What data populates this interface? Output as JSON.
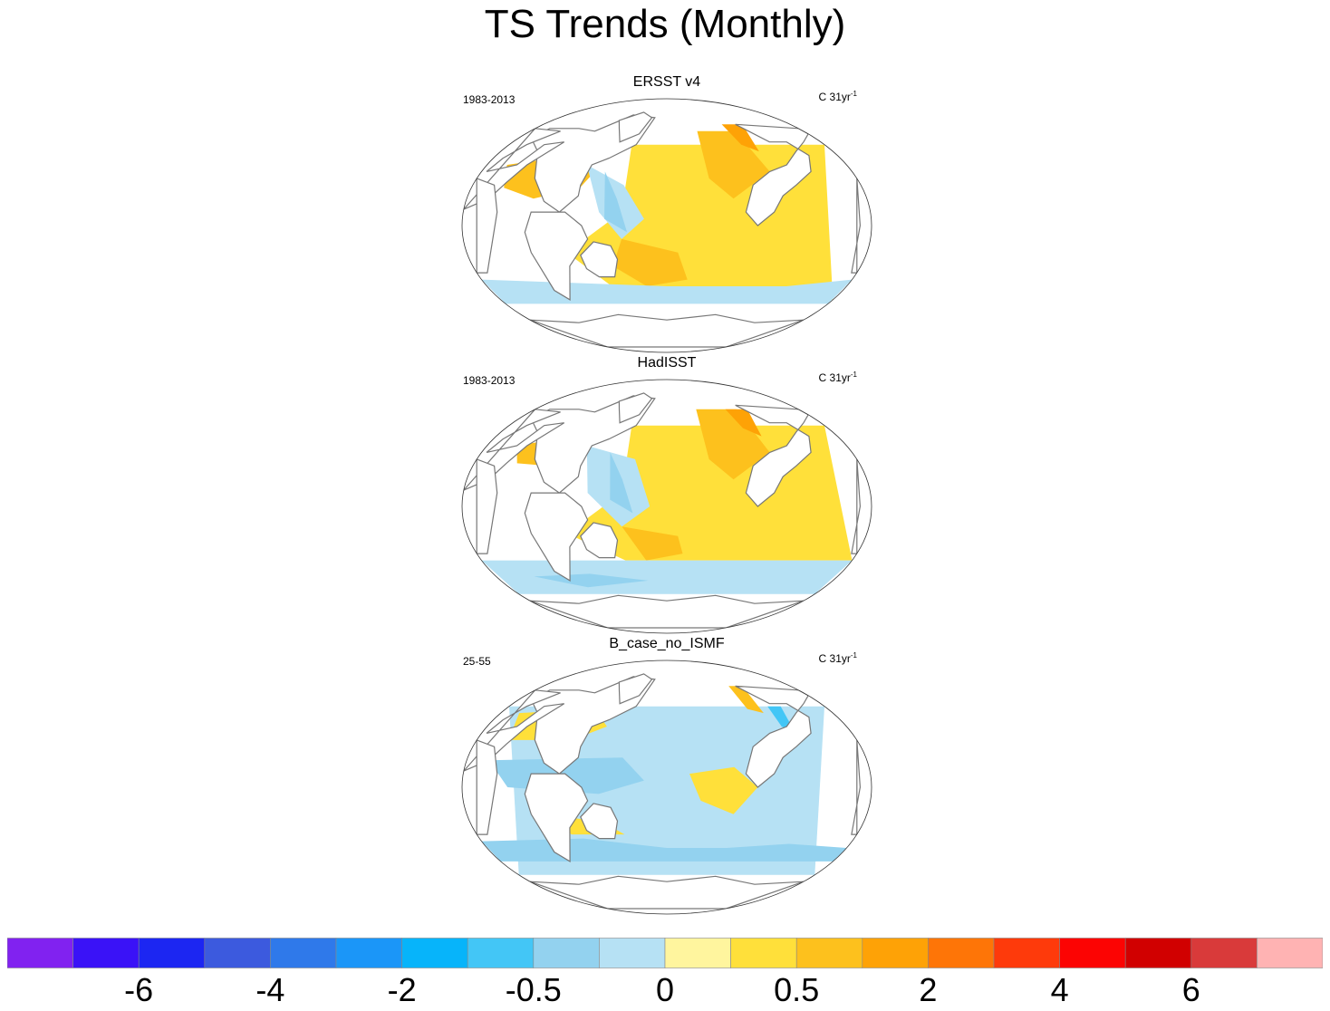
{
  "chart_data": {
    "type": "heatmap",
    "title": "TS Trends (Monthly)",
    "panels": [
      {
        "title": "ERSST v4",
        "period": "1983-2013",
        "units": "C 31yr",
        "units_sup": "-1",
        "pattern": "warm"
      },
      {
        "title": "HadISST",
        "period": "1983-2013",
        "units": "C 31yr",
        "units_sup": "-1",
        "pattern": "mixed"
      },
      {
        "title": "B_case_no_ISMF",
        "period": "25-55",
        "units": "C 31yr",
        "units_sup": "-1",
        "pattern": "cool"
      }
    ],
    "colorbar": {
      "colors": [
        "#8122f0",
        "#3a12f7",
        "#1c26f2",
        "#3c5ade",
        "#2f79ea",
        "#1b96f8",
        "#07b4fa",
        "#43c6f6",
        "#93d2ef",
        "#b6e1f4",
        "#fff59e",
        "#ffe03a",
        "#fdc11d",
        "#fea206",
        "#fe7507",
        "#fe3a0b",
        "#fc0403",
        "#d10000",
        "#d93a3a",
        "#ffb3b3"
      ],
      "tick_labels": [
        "-6",
        "-4",
        "-2",
        "-0.5",
        "0",
        "0.5",
        "2",
        "4",
        "6"
      ]
    }
  }
}
